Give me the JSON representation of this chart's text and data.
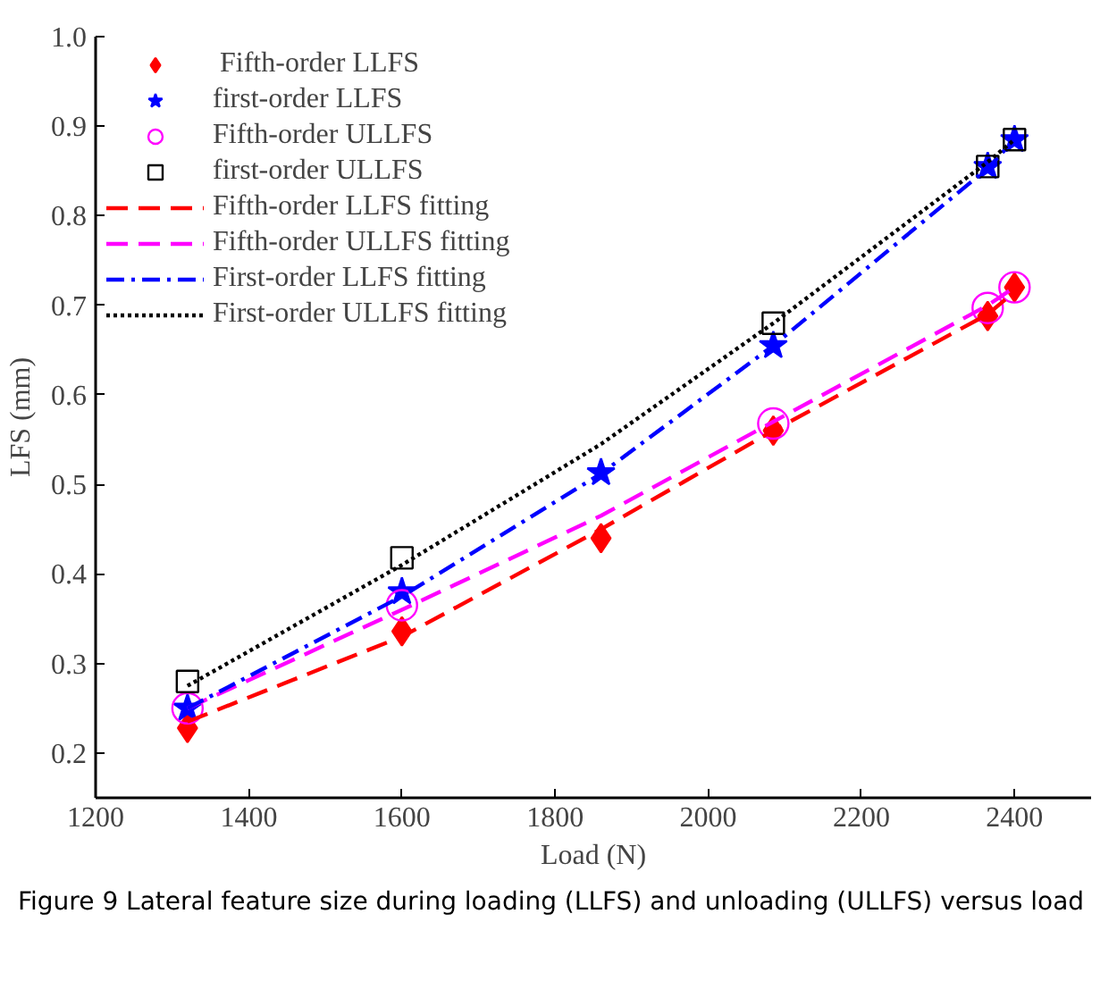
{
  "chart_data": {
    "type": "scatter",
    "xlabel": "Load (N)",
    "ylabel": "LFS (mm)",
    "xlim": [
      1200,
      2500
    ],
    "xticks": [
      1200,
      1400,
      1600,
      1800,
      2000,
      2200,
      2400
    ],
    "ylim": [
      0.15,
      1.0
    ],
    "yticks": [
      {
        "value": 0.2,
        "label": "0.2"
      },
      {
        "value": 0.3,
        "label": "0.3"
      },
      {
        "value": 0.4,
        "label": "0.4"
      },
      {
        "value": 0.5,
        "label": "0.5"
      },
      {
        "value": 0.6,
        "label": "0.6"
      },
      {
        "value": 0.7,
        "label": "0.7"
      },
      {
        "value": 0.8,
        "label": "0.8"
      },
      {
        "value": 0.9,
        "label": "0.9"
      },
      {
        "value": 1.0,
        "label": "1.0"
      }
    ],
    "x": [
      1320,
      1600,
      1860,
      2085,
      2365,
      2400
    ],
    "legend": "top left",
    "grid": false,
    "series": [
      {
        "name": " Fifth-order LLFS",
        "marker": "diamond",
        "color": "#ff0000",
        "values": [
          0.228,
          0.336,
          0.44,
          0.56,
          0.688,
          0.72
        ]
      },
      {
        "name": "first-order LLFS",
        "marker": "star",
        "color": "#0000ff",
        "values": [
          0.25,
          0.38,
          0.513,
          0.655,
          0.855,
          0.885
        ]
      },
      {
        "name": "Fifth-order ULLFS",
        "marker": "circle",
        "color": "#ff00ff",
        "values": [
          0.25,
          0.365,
          null,
          0.568,
          0.697,
          0.72
        ]
      },
      {
        "name": "first-order ULLFS",
        "marker": "square",
        "color": "#000000",
        "values": [
          0.28,
          0.418,
          null,
          0.68,
          0.855,
          0.885
        ]
      },
      {
        "name": "Fifth-order LLFS fitting",
        "type": "line",
        "line_style": "dashed",
        "color": "#ff0000",
        "values": [
          0.235,
          0.33,
          0.45,
          0.56,
          0.69,
          0.715
        ]
      },
      {
        "name": "Fifth-order ULLFS fitting",
        "type": "line",
        "line_style": "dashed",
        "color": "#ff00ff",
        "values": [
          0.25,
          0.36,
          0.465,
          0.57,
          0.7,
          0.72
        ]
      },
      {
        "name": "First-order LLFS fitting",
        "type": "line",
        "line_style": "dashdot",
        "color": "#0000ff",
        "values": [
          0.25,
          0.375,
          0.512,
          0.655,
          0.853,
          0.885
        ]
      },
      {
        "name": "First-order ULLFS fitting",
        "type": "line",
        "line_style": "dotted",
        "color": "#000000",
        "values": [
          0.275,
          0.41,
          0.545,
          0.68,
          0.86,
          0.885
        ]
      }
    ],
    "annotations": [
      "Figure 9  Lateral feature size during loading (LLFS) and unloading (ULLFS) versus load"
    ]
  }
}
